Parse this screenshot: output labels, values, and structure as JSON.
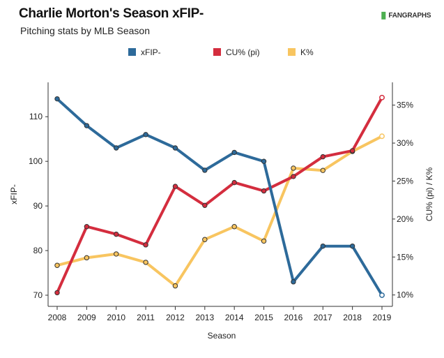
{
  "header": {
    "title": "Charlie Morton's Season xFIP-",
    "subtitle": "Pitching stats by MLB Season",
    "brand_mark": "▐▌",
    "brand_text": "FANGRAPHS"
  },
  "chart_data": {
    "type": "line",
    "xlabel": "Season",
    "ylabel_left": "xFIP-",
    "ylabel_right": "CU% (pi) / K%",
    "x": [
      2008,
      2009,
      2010,
      2011,
      2012,
      2013,
      2014,
      2015,
      2016,
      2017,
      2018,
      2019
    ],
    "left_axis": {
      "ylim": [
        67.5,
        117.7
      ],
      "ticks": [
        70,
        80,
        90,
        100,
        110
      ]
    },
    "right_axis": {
      "ylim": [
        0.085,
        0.38
      ],
      "ticks": [
        0.1,
        0.15,
        0.2,
        0.25,
        0.3,
        0.35
      ],
      "format": "percent"
    },
    "grid": false,
    "legend_position": "top-center",
    "series": [
      {
        "name": "xFIP-",
        "axis": "left",
        "color": "#2d6a9a",
        "values": [
          114,
          108,
          103,
          106,
          103,
          98,
          102,
          100,
          73,
          81,
          81,
          70
        ]
      },
      {
        "name": "CU% (pi)",
        "axis": "right",
        "color": "#d42d3e",
        "values": [
          0.103,
          0.19,
          0.18,
          0.166,
          0.243,
          0.218,
          0.248,
          0.237,
          0.256,
          0.282,
          0.29,
          0.36
        ]
      },
      {
        "name": "K%",
        "axis": "right",
        "color": "#f8c560",
        "values": [
          0.139,
          0.149,
          0.154,
          0.143,
          0.112,
          0.173,
          0.19,
          0.171,
          0.267,
          0.264,
          0.289,
          0.309
        ]
      }
    ]
  }
}
